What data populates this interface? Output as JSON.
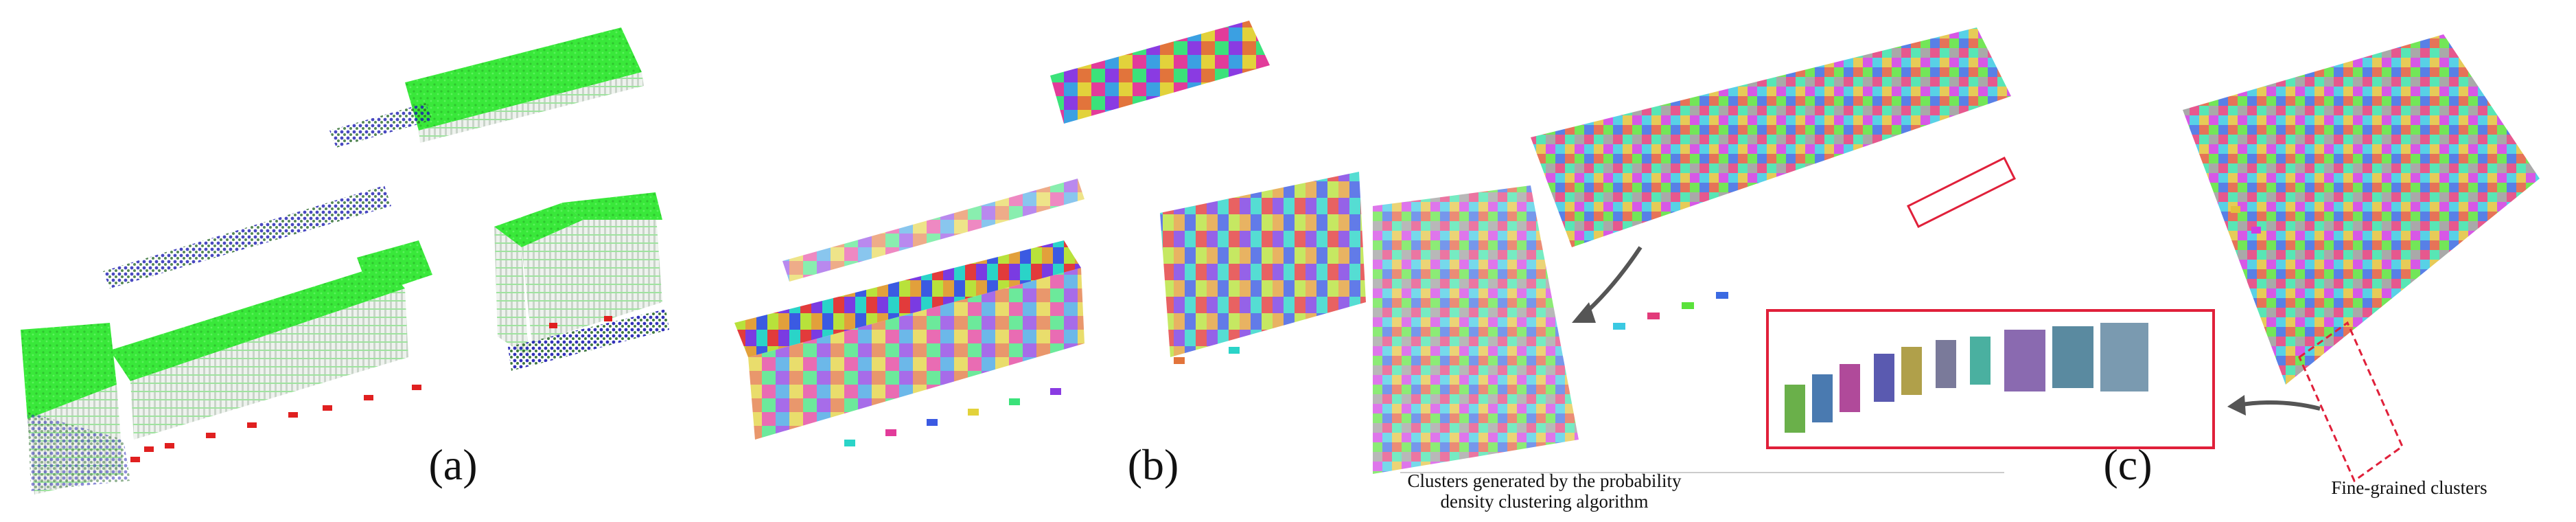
{
  "figure": {
    "panels": [
      {
        "id": "a",
        "caption": "(a)"
      },
      {
        "id": "b",
        "caption": "(b)"
      },
      {
        "id": "c",
        "caption": "(c)"
      }
    ],
    "annotations": {
      "left_note": "Clusters generated by the probability density clustering algorithm",
      "right_note": "Fine-grained clusters"
    },
    "colors": {
      "building": "#39e83a",
      "vegetation": "#1a1ab0",
      "car": "#e02020",
      "facade": "#d8dde8",
      "highlight_box": "#e0203a"
    }
  }
}
